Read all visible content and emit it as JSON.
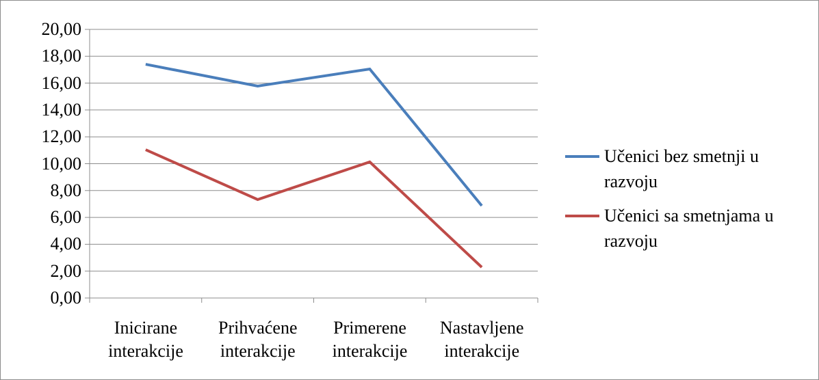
{
  "chart_data": {
    "type": "line",
    "categories": [
      "Inicirane interakcije",
      "Prihvaćene interakcije",
      "Primerene interakcije",
      "Nastavljene interakcije"
    ],
    "series": [
      {
        "name": "Učenici bez smetnji u razvoju",
        "color": "#4a7ebb",
        "values": [
          17.4,
          15.78,
          17.05,
          6.87
        ]
      },
      {
        "name": "Učenici sa smetnjama u razvoju",
        "color": "#be4b48",
        "values": [
          11.04,
          7.33,
          10.13,
          2.29
        ]
      }
    ],
    "ylim": [
      0,
      20
    ],
    "yticks": [
      {
        "value": 0,
        "label": "0,00"
      },
      {
        "value": 2,
        "label": "2,00"
      },
      {
        "value": 4,
        "label": "4,00"
      },
      {
        "value": 6,
        "label": "6,00"
      },
      {
        "value": 8,
        "label": "8,00"
      },
      {
        "value": 10,
        "label": "10,00"
      },
      {
        "value": 12,
        "label": "12,00"
      },
      {
        "value": 14,
        "label": "14,00"
      },
      {
        "value": 16,
        "label": "16,00"
      },
      {
        "value": 18,
        "label": "18,00"
      },
      {
        "value": 20,
        "label": "20,00"
      }
    ],
    "grid": true,
    "legend": "right"
  }
}
